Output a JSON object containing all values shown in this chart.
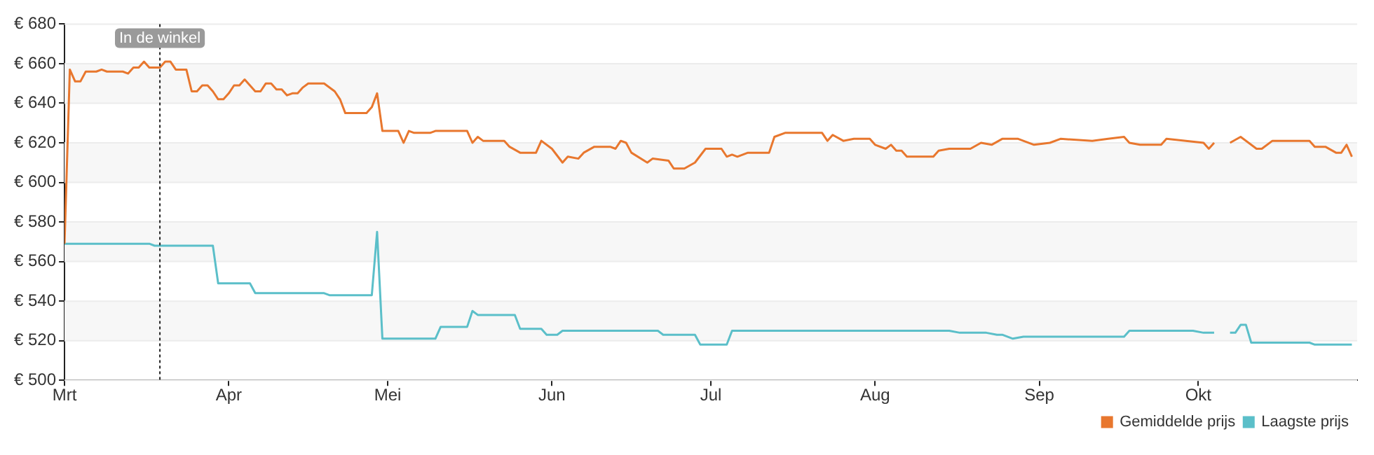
{
  "chart_data": {
    "type": "line",
    "xlim": [
      "--03-01",
      "--10-31"
    ],
    "xticks": [
      {
        "value": "--03-01",
        "label": "Mrt"
      },
      {
        "value": "--04-01",
        "label": "Apr"
      },
      {
        "value": "--05-01",
        "label": "Mei"
      },
      {
        "value": "--06-01",
        "label": "Jun"
      },
      {
        "value": "--07-01",
        "label": "Jul"
      },
      {
        "value": "--08-01",
        "label": "Aug"
      },
      {
        "value": "--09-01",
        "label": "Sep"
      },
      {
        "value": "--10-01",
        "label": "Okt"
      }
    ],
    "ylim": [
      500,
      680
    ],
    "yticks": [
      {
        "value": 500,
        "label": "€ 500"
      },
      {
        "value": 520,
        "label": "€ 520"
      },
      {
        "value": 540,
        "label": "€ 540"
      },
      {
        "value": 560,
        "label": "€ 560"
      },
      {
        "value": 580,
        "label": "€ 580"
      },
      {
        "value": 600,
        "label": "€ 600"
      },
      {
        "value": 620,
        "label": "€ 620"
      },
      {
        "value": 640,
        "label": "€ 640"
      },
      {
        "value": 660,
        "label": "€ 660"
      },
      {
        "value": 680,
        "label": "€ 680"
      }
    ],
    "grid": "y",
    "legend": "bottom right",
    "marker": "none",
    "line_style": "solid",
    "ref_lines": [
      {
        "axis": "x",
        "value": "--03-19",
        "label": "In de winkel",
        "color": "#222222",
        "line_style": "dotted"
      }
    ],
    "series": [
      {
        "name": "Gemiddelde prijs",
        "color": "#e8772e",
        "x": [
          "--03-01",
          "--03-02",
          "--03-03",
          "--03-04",
          "--03-05",
          "--03-07",
          "--03-08",
          "--03-09",
          "--03-12",
          "--03-13",
          "--03-14",
          "--03-15",
          "--03-16",
          "--03-17",
          "--03-19",
          "--03-20",
          "--03-21",
          "--03-22",
          "--03-24",
          "--03-25",
          "--03-26",
          "--03-27",
          "--03-28",
          "--03-29",
          "--03-30",
          "--03-31",
          "--04-01",
          "--04-02",
          "--04-03",
          "--04-04",
          "--04-05",
          "--04-06",
          "--04-07",
          "--04-08",
          "--04-09",
          "--04-10",
          "--04-11",
          "--04-12",
          "--04-13",
          "--04-14",
          "--04-15",
          "--04-16",
          "--04-19",
          "--04-21",
          "--04-22",
          "--04-23",
          "--04-27",
          "--04-28",
          "--04-29",
          "--04-30",
          "--05-03",
          "--05-04",
          "--05-05",
          "--05-06",
          "--05-09",
          "--05-10",
          "--05-16",
          "--05-17",
          "--05-18",
          "--05-19",
          "--05-23",
          "--05-24",
          "--05-26",
          "--05-29",
          "--05-30",
          "--06-01",
          "--06-03",
          "--06-04",
          "--06-06",
          "--06-07",
          "--06-09",
          "--06-12",
          "--06-13",
          "--06-14",
          "--06-15",
          "--06-16",
          "--06-19",
          "--06-20",
          "--06-23",
          "--06-24",
          "--06-26",
          "--06-28",
          "--06-30",
          "--07-03",
          "--07-04",
          "--07-05",
          "--07-06",
          "--07-08",
          "--07-12",
          "--07-13",
          "--07-15",
          "--07-18",
          "--07-22",
          "--07-23",
          "--07-24",
          "--07-26",
          "--07-28",
          "--07-31",
          "--08-01",
          "--08-03",
          "--08-04",
          "--08-05",
          "--08-06",
          "--08-07",
          "--08-12",
          "--08-13",
          "--08-15",
          "--08-19",
          "--08-21",
          "--08-23",
          "--08-25",
          "--08-28",
          "--08-31",
          "--09-03",
          "--09-05",
          "--09-11",
          "--09-14",
          "--09-17",
          "--09-18",
          "--09-20",
          "--09-24",
          "--09-25",
          "--10-02",
          "--10-03",
          "--10-04",
          "--10-05",
          "--10-07",
          "--10-09",
          "--10-12",
          "--10-13",
          "--10-15",
          "--10-22",
          "--10-23",
          "--10-25",
          "--10-27",
          "--10-28",
          "--10-29",
          "--10-30"
        ],
        "values": [
          569,
          657,
          651,
          651,
          656,
          656,
          657,
          656,
          656,
          655,
          658,
          658,
          661,
          658,
          658,
          661,
          661,
          657,
          657,
          646,
          646,
          649,
          649,
          646,
          642,
          642,
          645,
          649,
          649,
          652,
          649,
          646,
          646,
          650,
          650,
          647,
          647,
          644,
          645,
          645,
          648,
          650,
          650,
          646,
          642,
          635,
          635,
          638,
          645,
          626,
          626,
          620,
          626,
          625,
          625,
          626,
          626,
          620,
          623,
          621,
          621,
          618,
          615,
          615,
          621,
          617,
          610,
          613,
          612,
          615,
          618,
          618,
          617,
          621,
          620,
          615,
          610,
          612,
          611,
          607,
          607,
          610,
          617,
          617,
          613,
          614,
          613,
          615,
          615,
          623,
          625,
          625,
          625,
          621,
          624,
          621,
          622,
          622,
          619,
          617,
          619,
          616,
          616,
          613,
          613,
          616,
          617,
          617,
          620,
          619,
          622,
          622,
          619,
          620,
          622,
          621,
          622,
          623,
          620,
          619,
          619,
          622,
          620,
          617,
          620,
          null,
          620,
          623,
          617,
          617,
          621,
          621,
          618,
          618,
          615,
          615,
          619,
          613
        ]
      },
      {
        "name": "Laagste prijs",
        "color": "#5bbfc9",
        "x": [
          "--03-01",
          "--03-17",
          "--03-18",
          "--03-29",
          "--03-30",
          "--04-05",
          "--04-06",
          "--04-19",
          "--04-20",
          "--04-28",
          "--04-29",
          "--04-30",
          "--05-10",
          "--05-11",
          "--05-16",
          "--05-17",
          "--05-18",
          "--05-25",
          "--05-26",
          "--05-30",
          "--05-31",
          "--06-02",
          "--06-03",
          "--06-21",
          "--06-22",
          "--06-28",
          "--06-29",
          "--07-04",
          "--07-05",
          "--08-15",
          "--08-17",
          "--08-22",
          "--08-24",
          "--08-25",
          "--08-27",
          "--08-29",
          "--09-17",
          "--09-18",
          "--09-30",
          "--10-02",
          "--10-04",
          "--10-05",
          "--10-07",
          "--10-08",
          "--10-09",
          "--10-10",
          "--10-11",
          "--10-22",
          "--10-23",
          "--10-30"
        ],
        "values": [
          569,
          569,
          568,
          568,
          549,
          549,
          544,
          544,
          543,
          543,
          575,
          521,
          521,
          527,
          527,
          535,
          533,
          533,
          526,
          526,
          523,
          523,
          525,
          525,
          523,
          523,
          518,
          518,
          525,
          525,
          524,
          524,
          523,
          523,
          521,
          522,
          522,
          525,
          525,
          524,
          524,
          null,
          524,
          524,
          528,
          528,
          519,
          519,
          518,
          518
        ]
      }
    ]
  }
}
